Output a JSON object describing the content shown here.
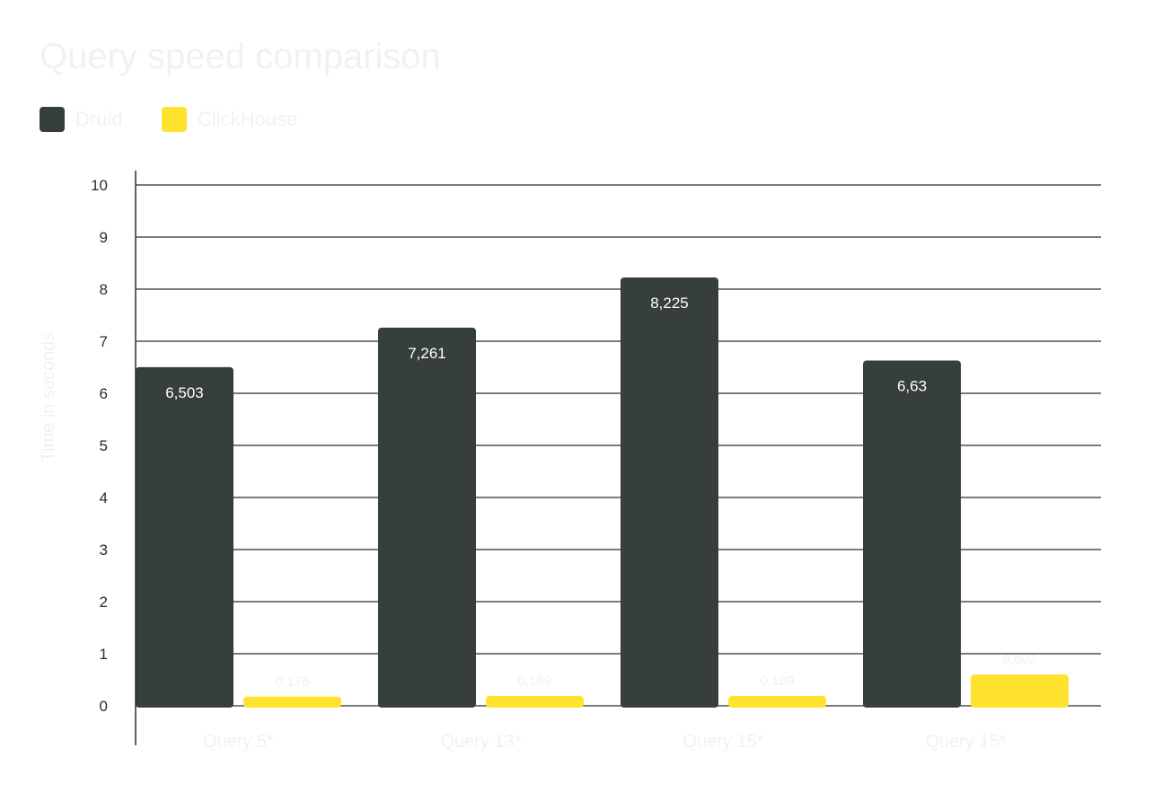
{
  "chart_data": {
    "type": "bar",
    "title": "Query speed comparison",
    "ylabel": "Time in seconds",
    "xlabel": "",
    "categories": [
      "Query 5*",
      "Query 13*",
      "Query 15*",
      "Query 15*"
    ],
    "series": [
      {
        "name": "Druid",
        "color": "#363f3c",
        "values": [
          6.503,
          7.261,
          8.225,
          6.63
        ],
        "labels": [
          "6,503",
          "7,261",
          "8,225",
          "6,63"
        ]
      },
      {
        "name": "ClickHouse",
        "color": "#ffe22e",
        "values": [
          0.176,
          0.189,
          0.189,
          0.602
        ],
        "labels": [
          "0,176",
          "0,189",
          "0,189",
          "0,602"
        ]
      }
    ],
    "ylim": [
      0,
      10
    ],
    "yticks": [
      "0",
      "1",
      "2",
      "3",
      "4",
      "5",
      "6",
      "7",
      "8",
      "9",
      "10"
    ],
    "grid": true,
    "legend": "top-left"
  }
}
